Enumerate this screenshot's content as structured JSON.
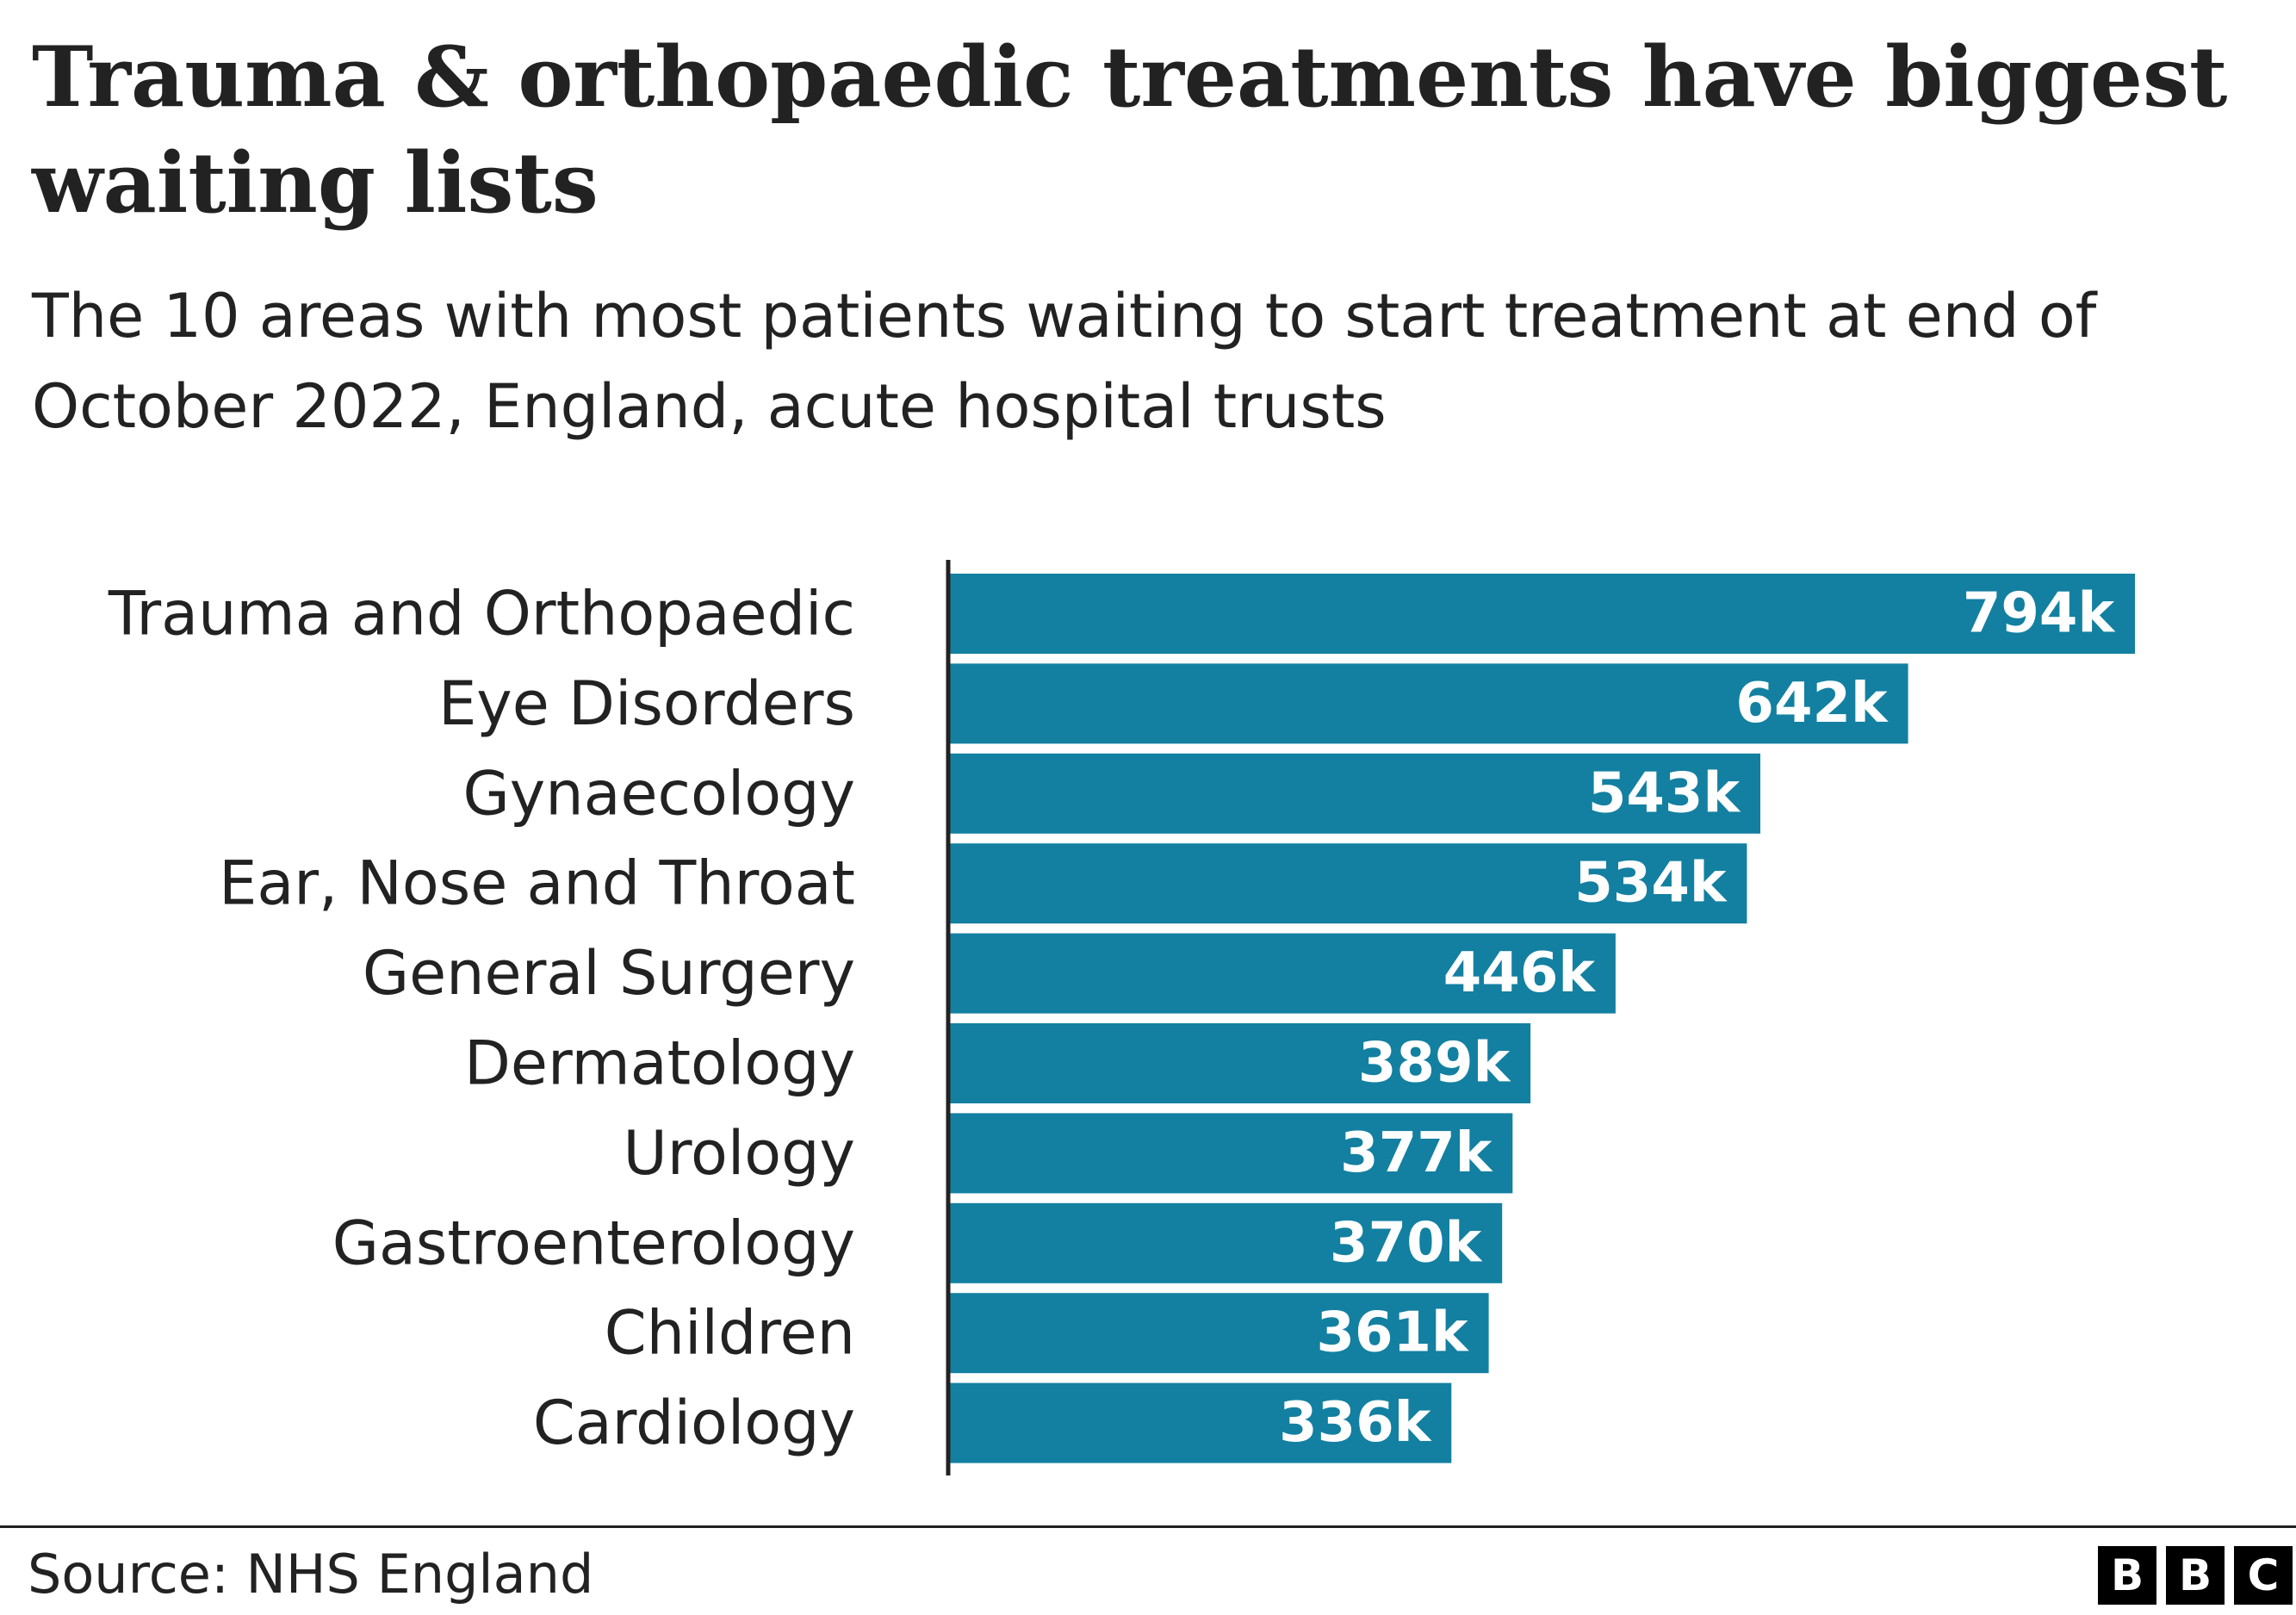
{
  "chart_data": {
    "type": "bar",
    "orientation": "horizontal",
    "title": "Trauma & orthopaedic treatments have biggest waiting lists",
    "subtitle": "The 10 areas with most patients waiting to start treatment at end of October 2022, England, acute hospital trusts",
    "categories": [
      "Trauma and Orthopaedic",
      "Eye Disorders",
      "Gynaecology",
      "Ear, Nose and Throat",
      "General Surgery",
      "Dermatology",
      "Urology",
      "Gastroenterology",
      "Children",
      "Cardiology"
    ],
    "values": [
      794000,
      642000,
      543000,
      534000,
      446000,
      389000,
      377000,
      370000,
      361000,
      336000
    ],
    "value_labels": [
      "794k",
      "642k",
      "543k",
      "534k",
      "446k",
      "389k",
      "377k",
      "370k",
      "361k",
      "336k"
    ],
    "bar_color": "#1380a1",
    "grid": false,
    "legend": "none"
  },
  "footer": {
    "source": "Source: NHS England",
    "logo_letters": [
      "B",
      "B",
      "C"
    ]
  }
}
